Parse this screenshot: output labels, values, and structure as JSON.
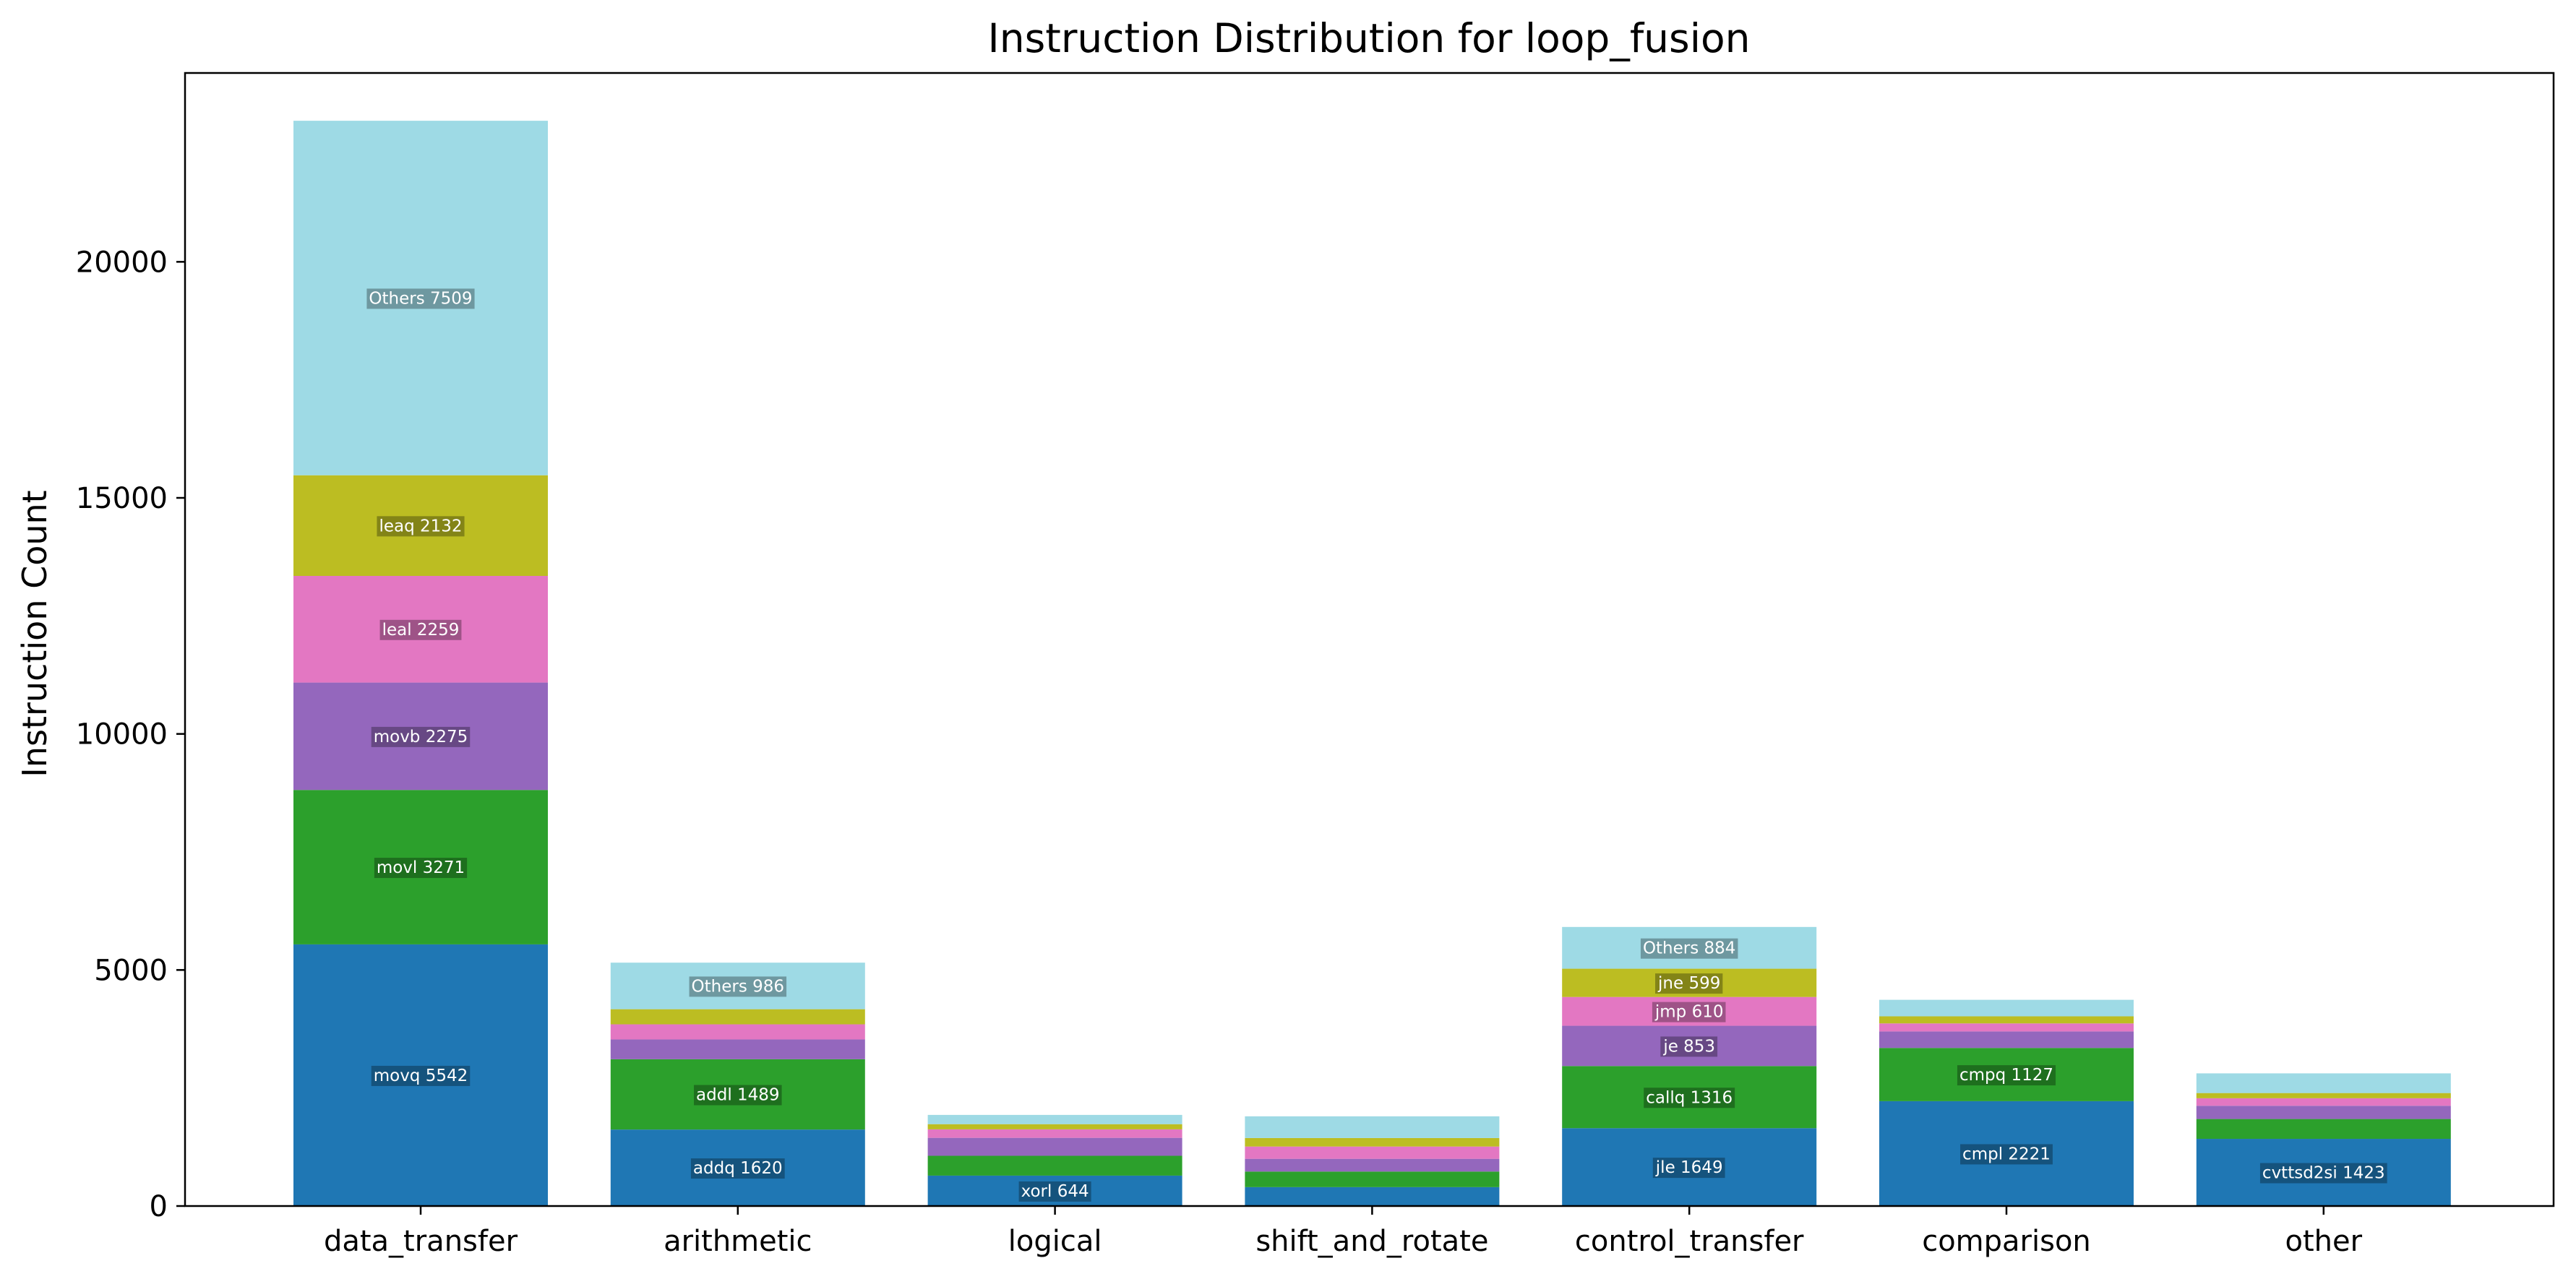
{
  "chart_data": {
    "type": "bar",
    "stacked": true,
    "title": "Instruction Distribution for loop_fusion",
    "xlabel": "",
    "ylabel": "Instruction Count",
    "ylim": [
      0,
      24000
    ],
    "yticks": [
      0,
      5000,
      10000,
      15000,
      20000
    ],
    "grid": false,
    "colors": [
      "#1f77b4",
      "#2ca02c",
      "#9467bd",
      "#e377c2",
      "#bcbd22",
      "#9edae5"
    ],
    "categories": [
      "data_transfer",
      "arithmetic",
      "logical",
      "shift_and_rotate",
      "control_transfer",
      "comparison",
      "other"
    ],
    "bars": [
      {
        "category": "data_transfer",
        "segments": [
          {
            "label": "movq 5542",
            "value": 5542
          },
          {
            "label": "movl 3271",
            "value": 3271
          },
          {
            "label": "movb 2275",
            "value": 2275
          },
          {
            "label": "leal 2259",
            "value": 2259
          },
          {
            "label": "leaq 2132",
            "value": 2132
          },
          {
            "label": "Others 7509",
            "value": 7509
          }
        ]
      },
      {
        "category": "arithmetic",
        "segments": [
          {
            "label": "addq 1620",
            "value": 1620
          },
          {
            "label": "addl 1489",
            "value": 1489
          },
          {
            "label": "",
            "value": 420
          },
          {
            "label": "",
            "value": 320
          },
          {
            "label": "",
            "value": 320
          },
          {
            "label": "Others 986",
            "value": 986
          }
        ]
      },
      {
        "category": "logical",
        "segments": [
          {
            "label": "xorl 644",
            "value": 644
          },
          {
            "label": "",
            "value": 420
          },
          {
            "label": "",
            "value": 380
          },
          {
            "label": "",
            "value": 180
          },
          {
            "label": "",
            "value": 110
          },
          {
            "label": "",
            "value": 196
          }
        ]
      },
      {
        "category": "shift_and_rotate",
        "segments": [
          {
            "label": "",
            "value": 400
          },
          {
            "label": "",
            "value": 330
          },
          {
            "label": "",
            "value": 270
          },
          {
            "label": "",
            "value": 260
          },
          {
            "label": "",
            "value": 180
          },
          {
            "label": "",
            "value": 460
          }
        ]
      },
      {
        "category": "control_transfer",
        "segments": [
          {
            "label": "jle 1649",
            "value": 1649
          },
          {
            "label": "callq 1316",
            "value": 1316
          },
          {
            "label": "je 853",
            "value": 853
          },
          {
            "label": "jmp 610",
            "value": 610
          },
          {
            "label": "jne 599",
            "value": 599
          },
          {
            "label": "Others 884",
            "value": 884
          }
        ]
      },
      {
        "category": "comparison",
        "segments": [
          {
            "label": "cmpl 2221",
            "value": 2221
          },
          {
            "label": "cmpq 1127",
            "value": 1127
          },
          {
            "label": "",
            "value": 350
          },
          {
            "label": "",
            "value": 170
          },
          {
            "label": "",
            "value": 150
          },
          {
            "label": "",
            "value": 350
          }
        ]
      },
      {
        "category": "other",
        "segments": [
          {
            "label": "cvttsd2si 1423",
            "value": 1423
          },
          {
            "label": "",
            "value": 420
          },
          {
            "label": "",
            "value": 280
          },
          {
            "label": "",
            "value": 160
          },
          {
            "label": "",
            "value": 110
          },
          {
            "label": "",
            "value": 417
          }
        ]
      }
    ]
  }
}
